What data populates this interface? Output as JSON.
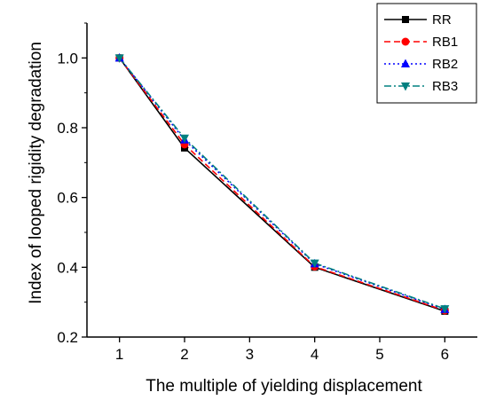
{
  "chart_data": {
    "type": "line",
    "xlabel": "The multiple of yielding displacement",
    "ylabel": "Index of looped rigidity degradation",
    "xlim": [
      0.5,
      6.5
    ],
    "ylim": [
      0.2,
      1.1
    ],
    "xticks": [
      1,
      2,
      3,
      4,
      5,
      6
    ],
    "yticks": [
      0.2,
      0.4,
      0.6,
      0.8,
      1.0
    ],
    "ytick_labels": [
      "0.2",
      "0.4",
      "0.6",
      "0.8",
      "1.0"
    ],
    "grid": false,
    "legend_position": "top-right",
    "x": [
      1,
      2,
      4,
      6
    ],
    "series": [
      {
        "name": "RR",
        "values": [
          1.0,
          0.742,
          0.4,
          0.274
        ],
        "color": "#000000",
        "dash": "solid",
        "marker": "square"
      },
      {
        "name": "RB1",
        "values": [
          1.0,
          0.752,
          0.402,
          0.276
        ],
        "color": "#ff0000",
        "dash": "dashed",
        "marker": "circle"
      },
      {
        "name": "RB2",
        "values": [
          1.0,
          0.765,
          0.41,
          0.279
        ],
        "color": "#0000ff",
        "dash": "dotted",
        "marker": "triangle-up"
      },
      {
        "name": "RB3",
        "values": [
          1.0,
          0.77,
          0.412,
          0.281
        ],
        "color": "#008080",
        "dash": "dash-dot",
        "marker": "triangle-down"
      }
    ]
  }
}
